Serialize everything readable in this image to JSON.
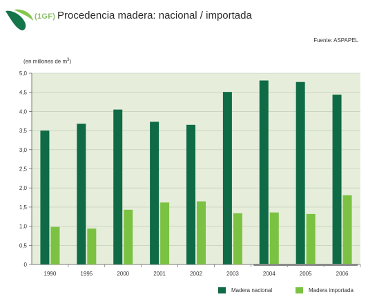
{
  "header": {
    "code": "(1GF)",
    "title": "Procedencia madera: nacional / importada",
    "source": "Fuente: ASPAPEL",
    "unit": "(en millones de m",
    "unit_sup": "3",
    "unit_close": ")"
  },
  "colors": {
    "nacional": "#0f6b45",
    "importada": "#7cc242",
    "plot_bg": "#e6eedb",
    "grid": "#b9c7ae",
    "logo_dark": "#14744a",
    "logo_light": "#86c64f"
  },
  "chart_data": {
    "type": "bar",
    "title": "Procedencia madera: nacional / importada",
    "ylabel": "(en millones de m3)",
    "xlabel": "",
    "categories": [
      "1990",
      "1995",
      "2000",
      "2001",
      "2002",
      "2003",
      "2004",
      "2005",
      "2006"
    ],
    "series": [
      {
        "name": "Madera nacional",
        "values": [
          3.5,
          3.68,
          4.05,
          3.73,
          3.65,
          4.51,
          4.81,
          4.77,
          4.44
        ]
      },
      {
        "name": "Madera importada",
        "values": [
          0.98,
          0.94,
          1.43,
          1.62,
          1.65,
          1.34,
          1.36,
          1.32,
          1.81
        ]
      }
    ],
    "ylim": [
      0,
      5
    ],
    "yticks": [
      "0",
      "0,5",
      "1,0",
      "1,5",
      "2,0",
      "2,5",
      "3,0",
      "3,5",
      "4,0",
      "4,5",
      "5,0"
    ],
    "grid": true,
    "legend_position": "bottom-right"
  }
}
